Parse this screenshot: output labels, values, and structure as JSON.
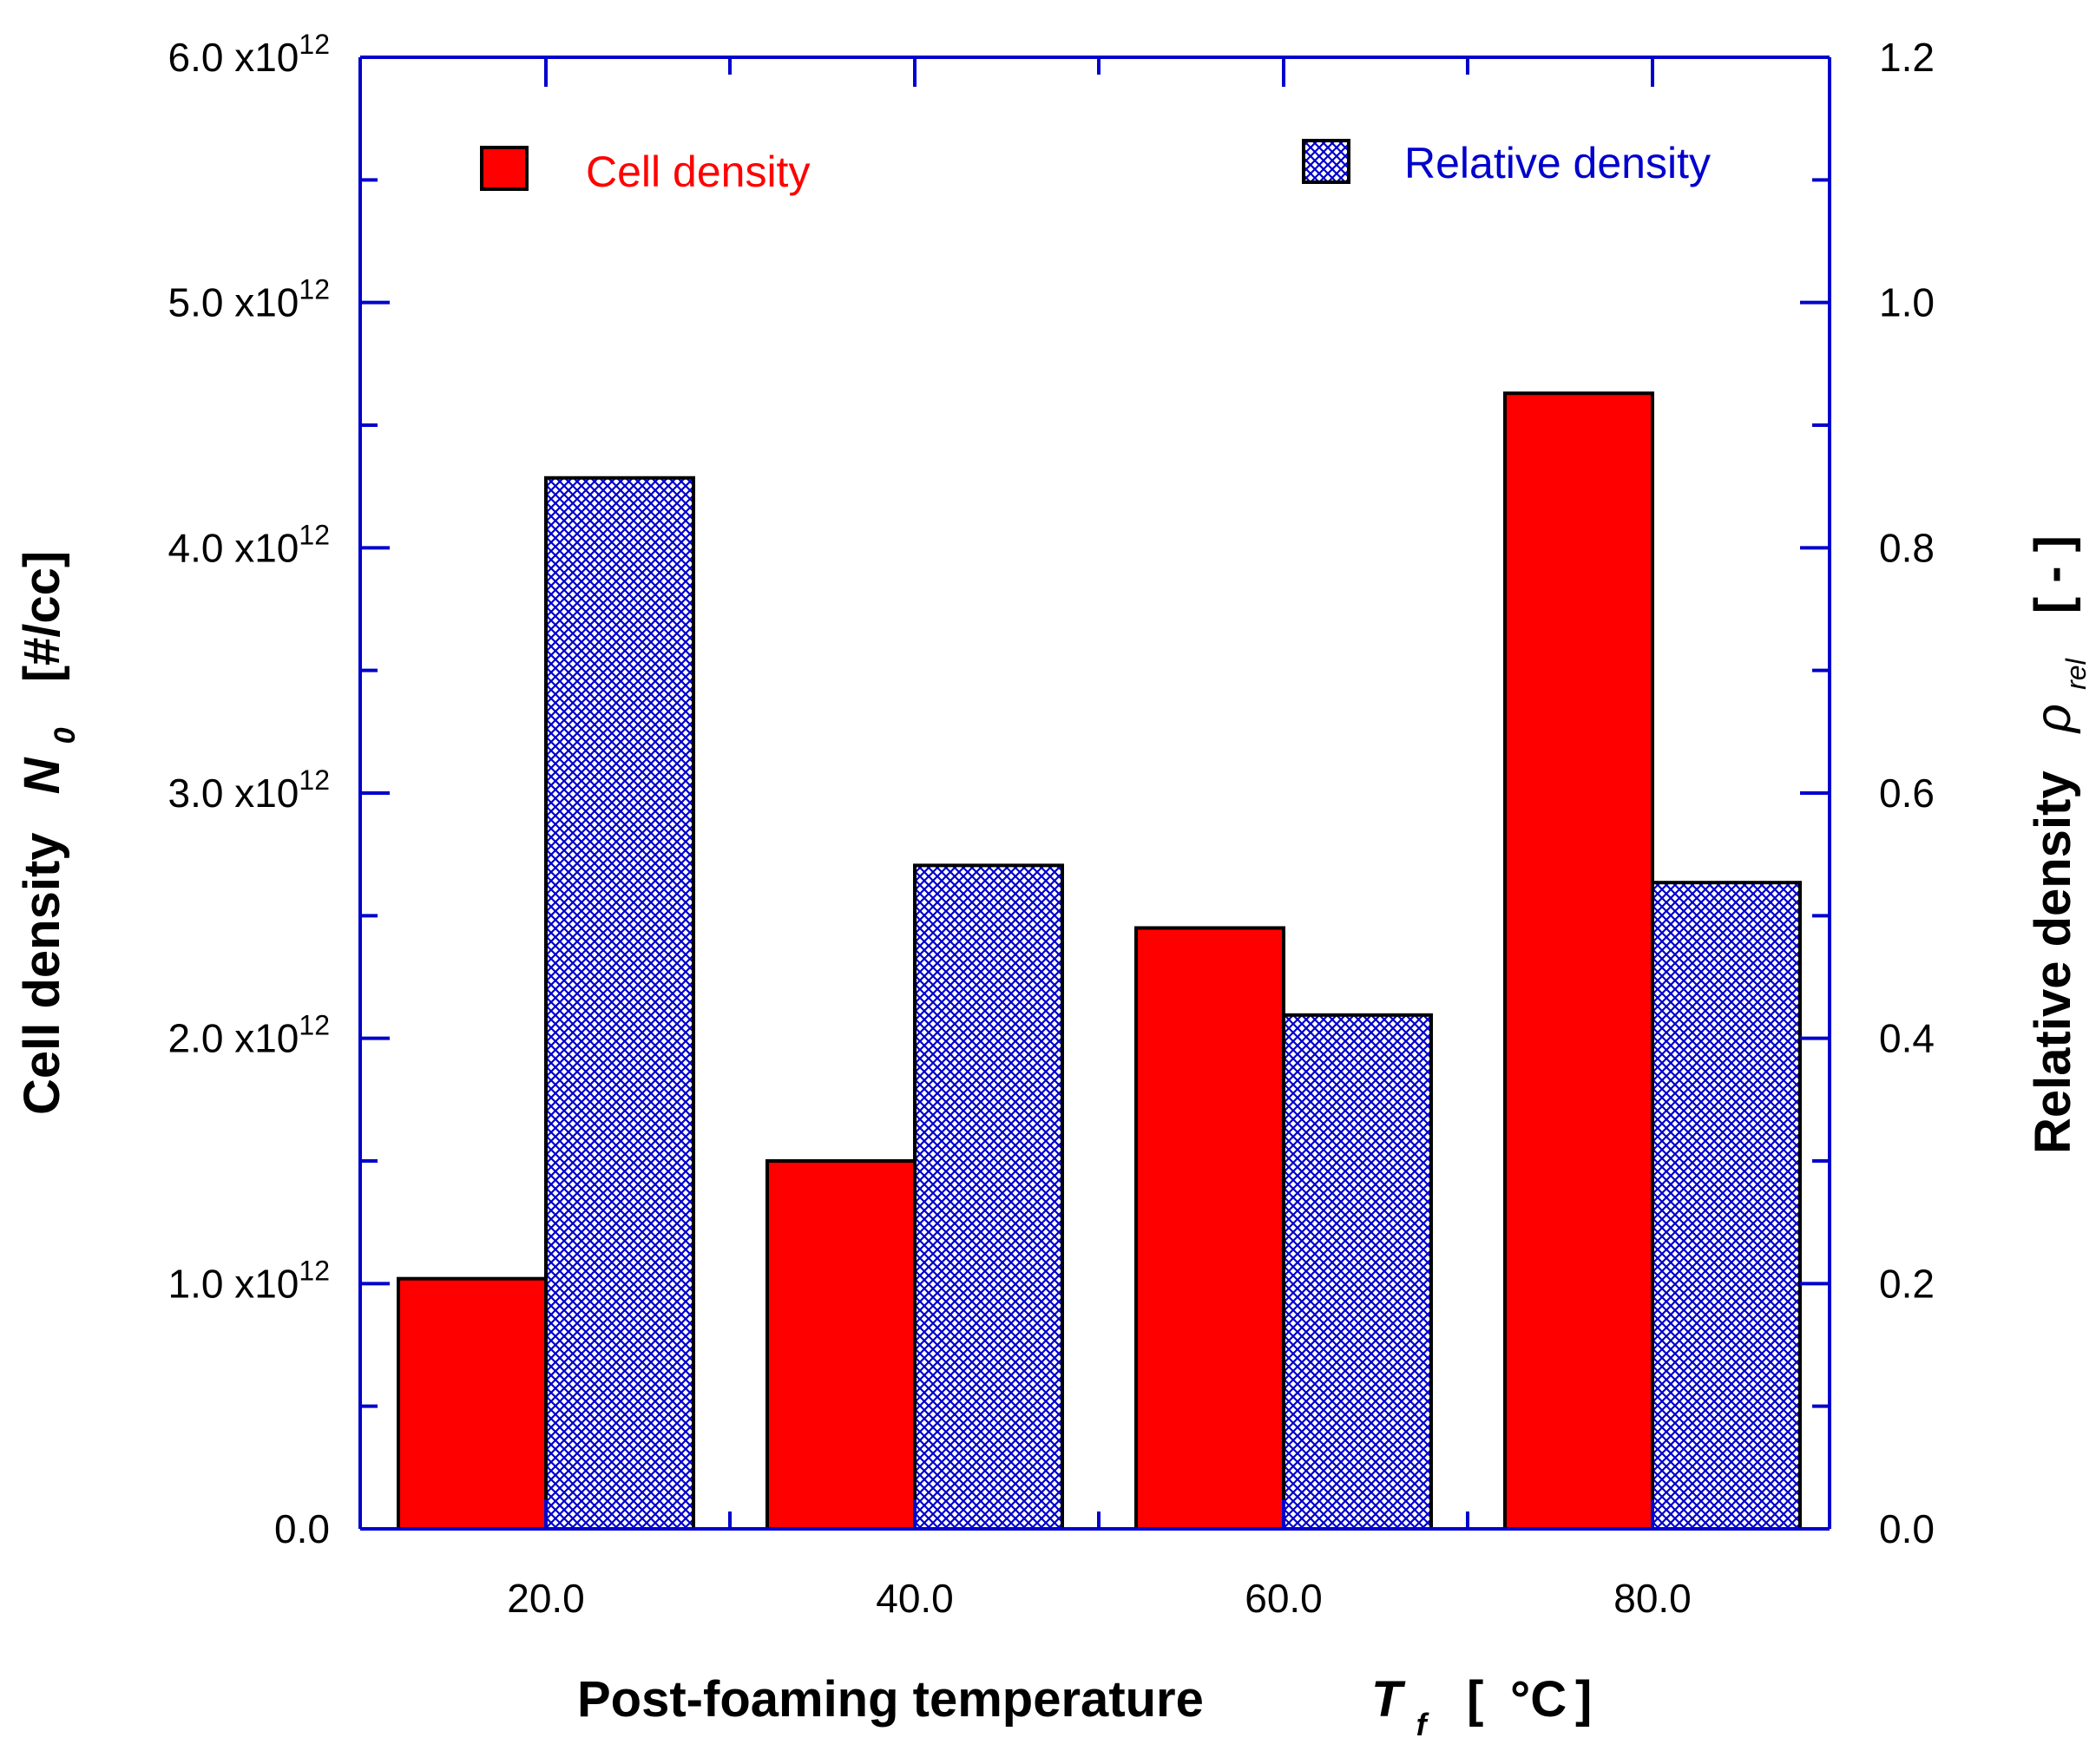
{
  "chart_data": {
    "type": "bar",
    "categories": [
      "20.0",
      "40.0",
      "60.0",
      "80.0"
    ],
    "series": [
      {
        "name": "Cell density",
        "axis": "left",
        "color": "#ff0000",
        "pattern": "solid",
        "values": [
          1020000000000.0,
          1500000000000.0,
          2450000000000.0,
          4630000000000.0
        ]
      },
      {
        "name": "Relative density",
        "axis": "right",
        "color": "#0000cc",
        "pattern": "crosshatch",
        "values": [
          0.857,
          0.541,
          0.419,
          0.527
        ]
      }
    ],
    "xlabel": {
      "text": "Post-foaming temperature",
      "symbol": "T",
      "subscript": "f",
      "unit_open": "[",
      "unit": "°C",
      "unit_close": "]"
    },
    "ylabel_left": {
      "text": "Cell density",
      "symbol": "N",
      "subscript": "0",
      "unit": "[#/cc]"
    },
    "ylabel_right": {
      "text": "Relative density",
      "symbol": "ρ",
      "subscript": "rel",
      "unit": "[ - ]"
    },
    "y_left": {
      "range": [
        0,
        6000000000000.0
      ],
      "ticks": [
        {
          "mantissa": "0.0",
          "exp": ""
        },
        {
          "mantissa": "1.0 x10",
          "exp": "12"
        },
        {
          "mantissa": "2.0 x10",
          "exp": "12"
        },
        {
          "mantissa": "3.0 x10",
          "exp": "12"
        },
        {
          "mantissa": "4.0 x10",
          "exp": "12"
        },
        {
          "mantissa": "5.0 x10",
          "exp": "12"
        },
        {
          "mantissa": "6.0 x10",
          "exp": "12"
        }
      ]
    },
    "y_right": {
      "range": [
        0,
        1.2
      ],
      "ticks": [
        "0.0",
        "0.2",
        "0.4",
        "0.6",
        "0.8",
        "1.0",
        "1.2"
      ]
    },
    "legend": [
      {
        "label": "Cell density",
        "color": "#ff0000",
        "position": "top-left"
      },
      {
        "label": "Relative density",
        "color": "#0000cc",
        "position": "top-right"
      }
    ],
    "axis_color": "#0000cc",
    "grid": false
  }
}
